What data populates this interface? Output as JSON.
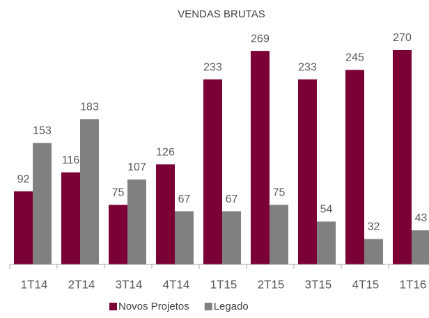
{
  "chart_data": {
    "type": "bar",
    "title": "VENDAS BRUTAS",
    "categories": [
      "1T14",
      "2T14",
      "3T14",
      "4T14",
      "1T15",
      "2T15",
      "3T15",
      "4T15",
      "1T16"
    ],
    "series": [
      {
        "name": "Novos Projetos",
        "color": "#7b0036",
        "values": [
          92,
          116,
          75,
          126,
          233,
          269,
          233,
          245,
          270
        ]
      },
      {
        "name": "Legado",
        "color": "#808080",
        "values": [
          153,
          183,
          107,
          67,
          67,
          75,
          54,
          32,
          43
        ]
      }
    ]
  }
}
